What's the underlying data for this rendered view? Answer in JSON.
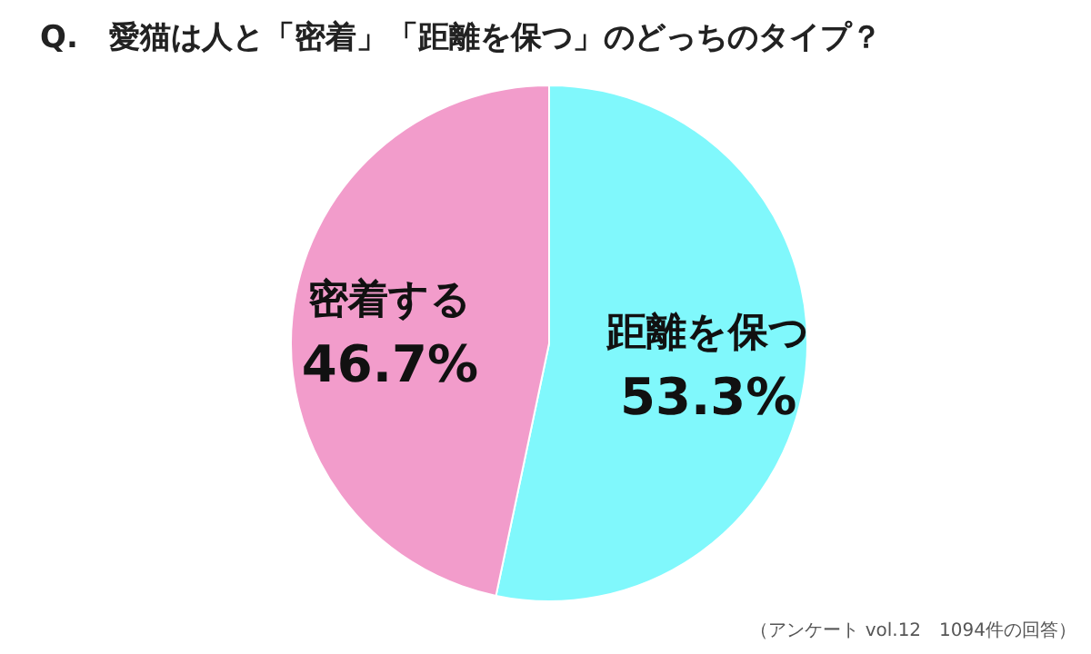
{
  "chart_data": {
    "type": "pie",
    "title": "Q.　愛猫は人と「密着」「距離を保つ」のどっちのタイプ？",
    "categories": [
      "距離を保つ",
      "密着する"
    ],
    "values": [
      53.3,
      46.7
    ],
    "value_labels": [
      "53.3%",
      "46.7%"
    ],
    "colors": [
      "#80f8fc",
      "#f29ccb"
    ],
    "annotations": [
      "（アンケート vol.12　1094件の回答）"
    ]
  }
}
